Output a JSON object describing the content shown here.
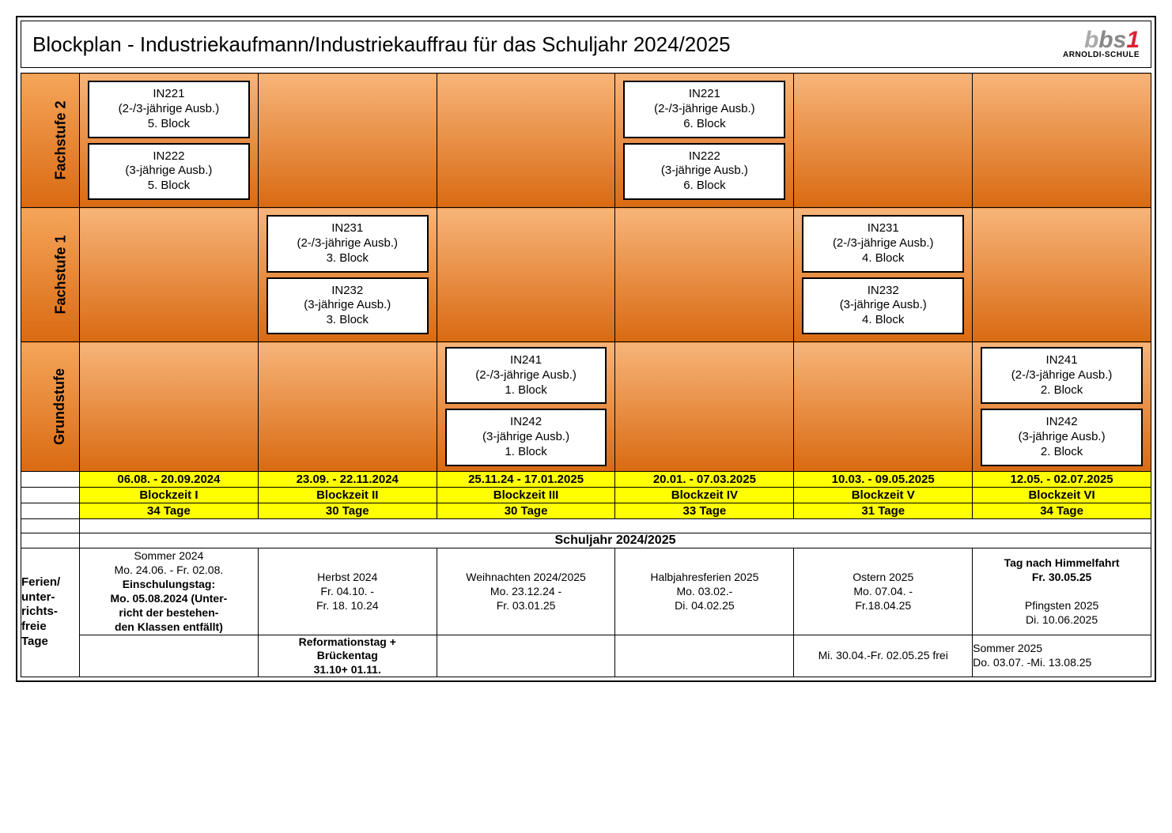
{
  "colors": {
    "grad_top": "#f7b479",
    "grad_bottom": "#d96a12",
    "yellow": "#ffff00",
    "border": "#000000",
    "white": "#ffffff",
    "logo_grey1": "#aaaaaa",
    "logo_grey2": "#888888",
    "logo_red": "#dd2233"
  },
  "header": {
    "title": "Blockplan - Industriekaufmann/Industriekauffrau für das Schuljahr 2024/2025",
    "logo_text": "bbs1",
    "logo_sub": "ARNOLDI-SCHULE"
  },
  "stages": [
    {
      "label": "Fachstufe 2",
      "cells": [
        [
          {
            "code": "IN221",
            "desc": "(2-/3-jährige Ausb.)",
            "block": "5. Block"
          },
          {
            "code": "IN222",
            "desc": "(3-jährige Ausb.)",
            "block": "5. Block"
          }
        ],
        null,
        null,
        [
          {
            "code": "IN221",
            "desc": "(2-/3-jährige Ausb.)",
            "block": "6. Block"
          },
          {
            "code": "IN222",
            "desc": "(3-jährige Ausb.)",
            "block": "6. Block"
          }
        ],
        null,
        null
      ]
    },
    {
      "label": "Fachstufe 1",
      "cells": [
        null,
        [
          {
            "code": "IN231",
            "desc": "(2-/3-jährige Ausb.)",
            "block": "3. Block"
          },
          {
            "code": "IN232",
            "desc": "(3-jährige Ausb.)",
            "block": "3. Block"
          }
        ],
        null,
        null,
        [
          {
            "code": "IN231",
            "desc": "(2-/3-jährige Ausb.)",
            "block": "4. Block"
          },
          {
            "code": "IN232",
            "desc": "(3-jährige Ausb.)",
            "block": "4. Block"
          }
        ],
        null
      ]
    },
    {
      "label": "Grundstufe",
      "cells": [
        null,
        null,
        [
          {
            "code": "IN241",
            "desc": "(2-/3-jährige Ausb.)",
            "block": "1. Block"
          },
          {
            "code": "IN242",
            "desc": "(3-jährige Ausb.)",
            "block": "1. Block"
          }
        ],
        null,
        null,
        [
          {
            "code": "IN241",
            "desc": "(2-/3-jährige Ausb.)",
            "block": "2. Block"
          },
          {
            "code": "IN242",
            "desc": "(3-jährige Ausb.)",
            "block": "2. Block"
          }
        ]
      ]
    }
  ],
  "periods": {
    "dates": [
      "06.08. - 20.09.2024",
      "23.09. - 22.11.2024",
      "25.11.24  - 17.01.2025",
      "20.01. - 07.03.2025",
      "10.03. - 09.05.2025",
      "12.05. - 02.07.2025"
    ],
    "names": [
      "Blockzeit I",
      "Blockzeit II",
      "Blockzeit III",
      "Blockzeit IV",
      "Blockzeit V",
      "Blockzeit VI"
    ],
    "days": [
      "34 Tage",
      "30 Tage",
      "30 Tage",
      "33 Tage",
      "31 Tage",
      "34 Tage"
    ]
  },
  "schoolyear_label": "Schuljahr 2024/2025",
  "holidays_label": "Ferien/\nunter-\nrichts-\nfreie\nTage",
  "holidays_row1": [
    "Sommer 2024\nMo. 24.06. - Fr. 02.08.\n<b>Einschulungstag:\nMo. 05.08.2024 (Unter-\nricht der bestehen-\nden Klassen entfällt)</b>",
    "Herbst 2024\nFr. 04.10. -\nFr. 18. 10.24",
    "Weihnachten 2024/2025\nMo. 23.12.24 -\nFr. 03.01.25",
    "Halbjahresferien 2025\nMo. 03.02.-\nDi. 04.02.25",
    "Ostern 2025\nMo. 07.04. -\nFr.18.04.25",
    "<b>Tag nach Himmelfahrt\nFr. 30.05.25</b>\n\nPfingsten 2025\nDi. 10.06.2025"
  ],
  "holidays_row2": [
    "",
    "<b>Reformationstag +\nBrückentag\n31.10+ 01.11.</b>",
    "",
    "",
    "Mi. 30.04.-Fr. 02.05.25 frei",
    "Sommer 2025\nDo. 03.07. -Mi. 13.08.25"
  ],
  "holidays_row2_align": [
    "center",
    "center",
    "center",
    "center",
    "center",
    "left"
  ]
}
